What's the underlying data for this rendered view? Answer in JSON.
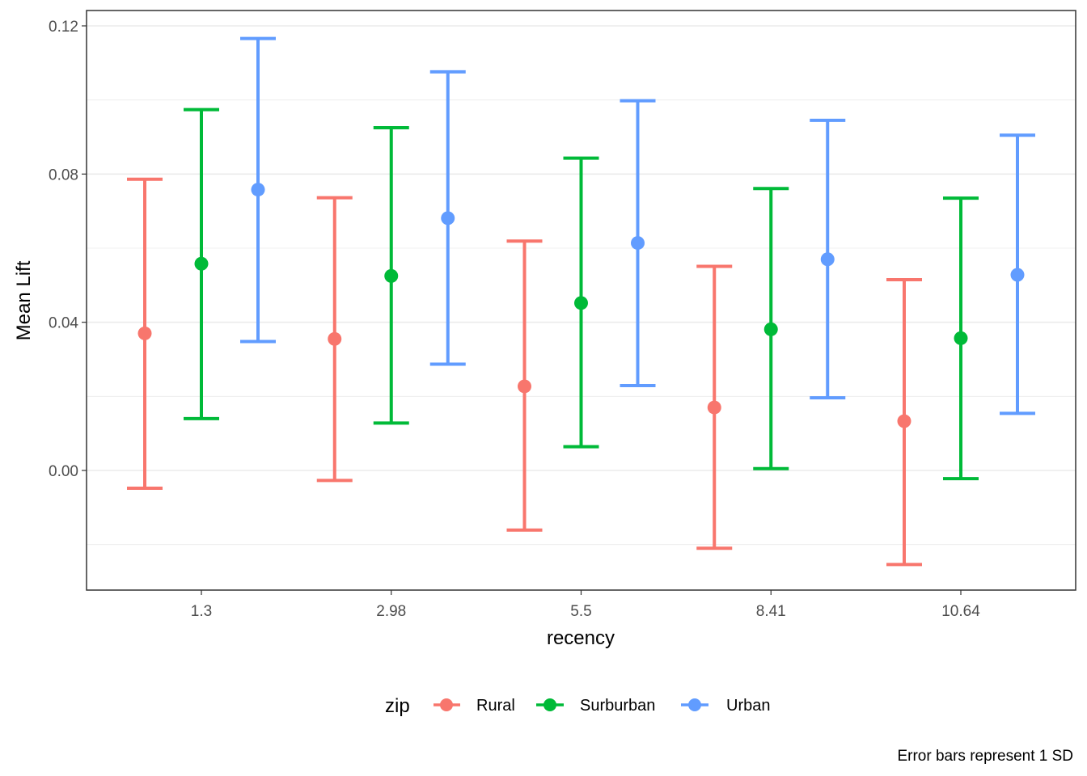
{
  "chart_data": {
    "type": "scatter",
    "subtype": "point-with-errorbars",
    "title": "",
    "xlabel": "recency",
    "ylabel": "Mean Lift",
    "categories": [
      "1.3",
      "2.98",
      "5.5",
      "8.41",
      "10.64"
    ],
    "ylim": [
      -0.032,
      0.124
    ],
    "yticks": [
      "0.00",
      "0.04",
      "0.08",
      "0.12"
    ],
    "ytick_values": [
      0.0,
      0.04,
      0.08,
      0.12
    ],
    "grid": true,
    "legend": {
      "title": "zip",
      "position": "bottom"
    },
    "caption": "Error bars represent 1 SD",
    "series": [
      {
        "name": "Rural",
        "color": "#F8766D",
        "values": [
          0.037,
          0.0355,
          0.0227,
          0.017,
          0.0133
        ],
        "lower": [
          -0.0048,
          -0.0027,
          -0.0161,
          -0.021,
          -0.0254
        ],
        "upper": [
          0.0786,
          0.0736,
          0.0619,
          0.0551,
          0.0515
        ]
      },
      {
        "name": "Surburban",
        "color": "#00BA38",
        "values": [
          0.0558,
          0.0525,
          0.0452,
          0.0381,
          0.0357
        ],
        "lower": [
          0.014,
          0.0128,
          0.0064,
          0.0005,
          -0.0022
        ],
        "upper": [
          0.0974,
          0.0925,
          0.0843,
          0.0761,
          0.0735
        ]
      },
      {
        "name": "Urban",
        "color": "#619CFF",
        "values": [
          0.0758,
          0.0681,
          0.0614,
          0.057,
          0.0528
        ],
        "lower": [
          0.0348,
          0.0287,
          0.0229,
          0.0196,
          0.0154
        ],
        "upper": [
          0.1166,
          0.1076,
          0.0998,
          0.0945,
          0.0905
        ]
      }
    ]
  }
}
